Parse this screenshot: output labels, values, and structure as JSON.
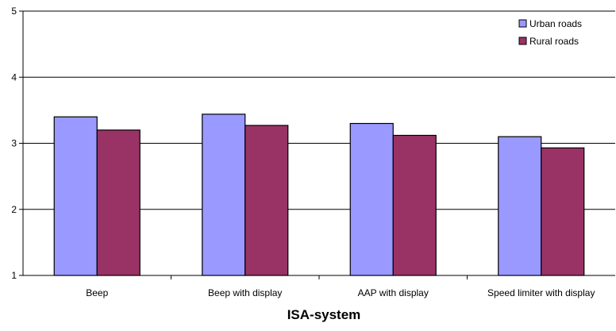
{
  "chart_data": {
    "type": "bar",
    "categories": [
      "Beep",
      "Beep with display",
      "AAP with display",
      "Speed limiter with display"
    ],
    "series": [
      {
        "name": "Urban roads",
        "values": [
          3.4,
          3.44,
          3.3,
          3.1
        ],
        "color": "#9999ff"
      },
      {
        "name": "Rural roads",
        "values": [
          3.2,
          3.27,
          3.12,
          2.93
        ],
        "color": "#993366"
      }
    ],
    "title": "",
    "xlabel": "ISA-system",
    "ylabel": "",
    "ylim": [
      1,
      5
    ],
    "yticks": [
      "1",
      "2",
      "3",
      "4",
      "5"
    ],
    "grid": true,
    "legend_position": "top-right"
  }
}
